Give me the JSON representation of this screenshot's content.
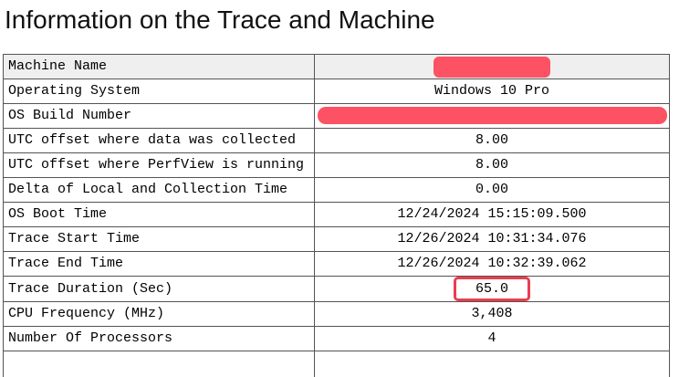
{
  "page": {
    "title": "Information on the Trace and Machine"
  },
  "colors": {
    "redaction": "#fd5263",
    "highlight": "#ea3e4e",
    "rowshade": "#efefef",
    "border": "#545454"
  },
  "table": {
    "rows": [
      {
        "label": "Machine Name",
        "value": "",
        "redacted": true
      },
      {
        "label": "Operating System",
        "value": "Windows 10 Pro"
      },
      {
        "label": "OS Build Number",
        "value": "_",
        "redacted": true
      },
      {
        "label": "UTC offset where data was collected",
        "value": "8.00"
      },
      {
        "label": "UTC offset where PerfView is running",
        "value": "8.00"
      },
      {
        "label": "Delta of Local and Collection Time",
        "value": "0.00"
      },
      {
        "label": "OS Boot Time",
        "value": "12/24/2024 15:15:09.500"
      },
      {
        "label": "Trace Start Time",
        "value": "12/26/2024 10:31:34.076"
      },
      {
        "label": "Trace End Time",
        "value": "12/26/2024 10:32:39.062"
      },
      {
        "label": "Trace Duration (Sec)",
        "value": "65.0",
        "highlighted": true
      },
      {
        "label": "CPU Frequency (MHz)",
        "value": "3,408"
      },
      {
        "label": "Number Of Processors",
        "value": "4"
      }
    ]
  }
}
